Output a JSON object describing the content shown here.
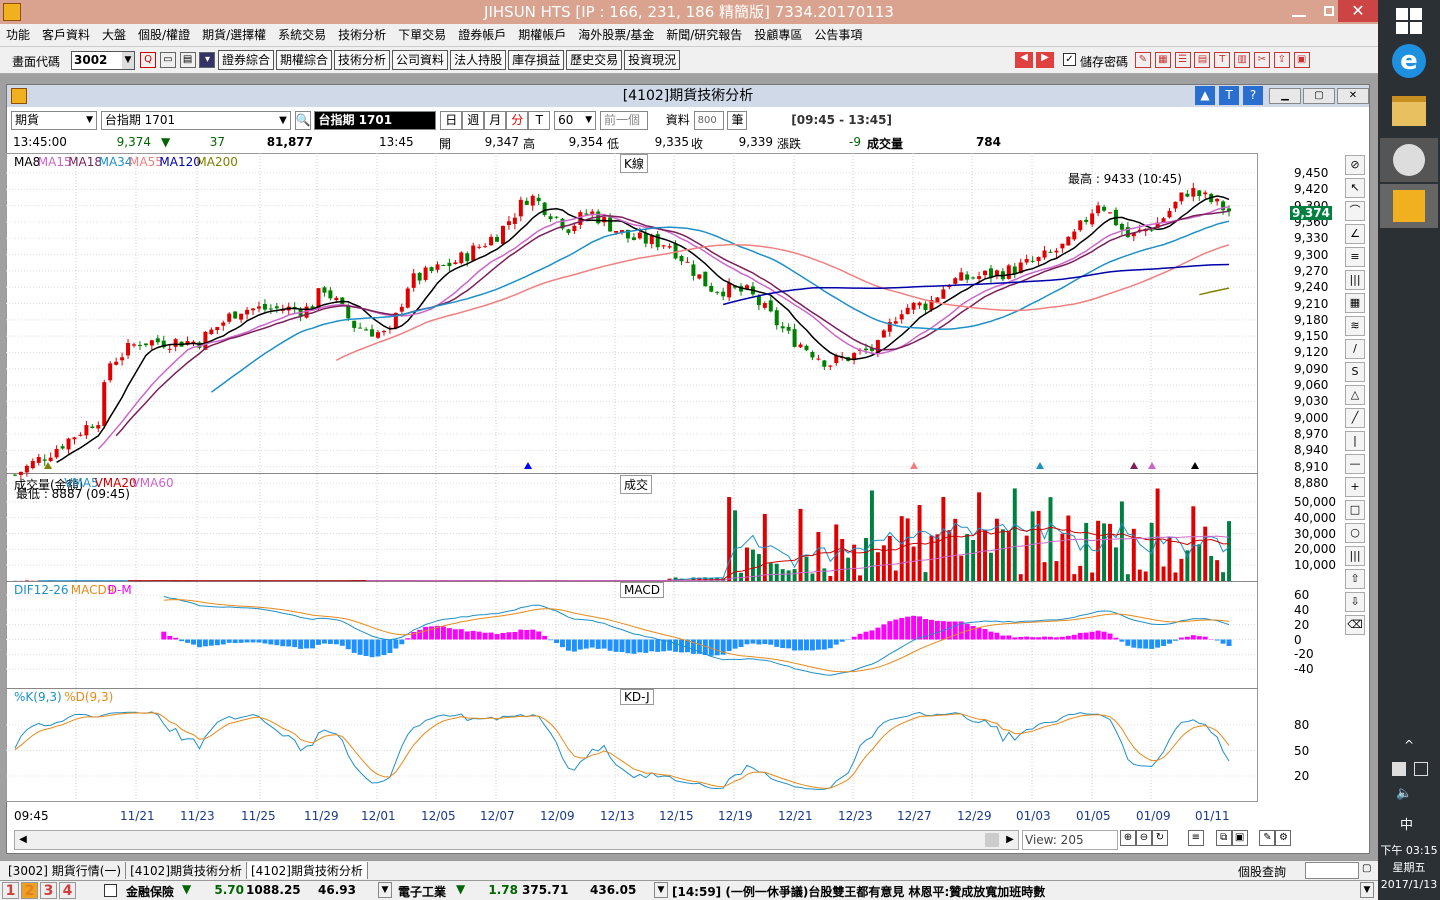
{
  "window_title": "JIHSUN HTS    [IP : 166, 231, 186 精簡版] 7334.20170113",
  "menu": [
    "功能",
    "客戶資料",
    "大盤",
    "個股/權證",
    "期貨/選擇權",
    "系統交易",
    "技術分析",
    "下單交易",
    "證券帳戶",
    "期權帳戶",
    "海外股票/基金",
    "新聞/研究報告",
    "投顧專區",
    "公告事項"
  ],
  "toolbar": {
    "code_label": "畫面代碼",
    "code_value": "3002",
    "buttons": [
      "證券綜合",
      "期權綜合",
      "技術分析",
      "公司資料",
      "法人持股",
      "庫存損益",
      "歷史交易",
      "投資現況"
    ],
    "save_password": "儲存密碼"
  },
  "inner": {
    "title": "[4102]期貨技術分析",
    "type_select": "期貨",
    "symbol": "台指期 1701",
    "symbol_name": "台指期 1701",
    "periods": [
      "日",
      "週",
      "月",
      "分",
      "T"
    ],
    "minutes": "60",
    "prev_btn": "前一個",
    "data_label": "資料",
    "data_count": "800",
    "data_unit": "筆",
    "session": "[09:45 - 13:45]"
  },
  "quote": {
    "time": "13:45:00",
    "price": "9,374",
    "change": "37",
    "volume": "81,877",
    "time2": "13:45",
    "open_label": "開",
    "open": "9,347",
    "high_label": "高",
    "high": "9,354",
    "low_label": "低",
    "low": "9,335",
    "close_label": "收",
    "close": "9,339",
    "chg_label": "漲跌",
    "chg": "-9",
    "vol_label": "成交量",
    "vol": "784"
  },
  "panels": {
    "k": {
      "title": "K線",
      "legend": [
        {
          "t": "MA8",
          "c": "#000000"
        },
        {
          "t": "MA15",
          "c": "#cc66cc"
        },
        {
          "t": "MA18",
          "c": "#7b1f5a"
        },
        {
          "t": "MA34",
          "c": "#1e90c8"
        },
        {
          "t": "MA55",
          "c": "#f08080"
        },
        {
          "t": "MA120",
          "c": "#0000aa"
        },
        {
          "t": "MA200",
          "c": "#808000"
        }
      ],
      "high_note": "最高 : 9433 (10:45)",
      "low_note": "最低 : 8887 (09:45)",
      "ticks": [
        "9,450",
        "9,420",
        "9,390",
        "9,360",
        "9,330",
        "9,300",
        "9,270",
        "9,240",
        "9,210",
        "9,180",
        "9,150",
        "9,120",
        "9,090",
        "9,060",
        "9,030",
        "9,000",
        "8,970",
        "8,940",
        "8,910",
        "8,880"
      ],
      "last": "9,374"
    },
    "vol": {
      "title": "成交",
      "legend": [
        {
          "t": "成交量(金額)",
          "c": "#000000"
        },
        {
          "t": "VMA5",
          "c": "#1e90c8"
        },
        {
          "t": "VMA20",
          "c": "#cc0000"
        },
        {
          "t": "VMA60",
          "c": "#cc66cc"
        }
      ],
      "ticks": [
        "50,000",
        "40,000",
        "30,000",
        "20,000",
        "10,000"
      ]
    },
    "macd": {
      "title": "MACD",
      "legend": [
        {
          "t": "DIF12-26",
          "c": "#1e90c8"
        },
        {
          "t": "MACD9",
          "c": "#e88a1a"
        },
        {
          "t": "D-M",
          "c": "#ff00ff"
        }
      ],
      "ticks": [
        "60",
        "40",
        "20",
        "0",
        "-20",
        "-40"
      ]
    },
    "kd": {
      "title": "KD-J",
      "legend": [
        {
          "t": "%K(9,3)",
          "c": "#1e90c8"
        },
        {
          "t": "%D(9,3)",
          "c": "#e88a1a"
        }
      ],
      "ticks": [
        "80",
        "50",
        "20"
      ]
    }
  },
  "xaxis": [
    "09:45",
    "11/21",
    "11/23",
    "11/25",
    "11/29",
    "12/01",
    "12/05",
    "12/07",
    "12/09",
    "12/13",
    "12/15",
    "12/19",
    "12/21",
    "12/23",
    "12/27",
    "12/29",
    "01/03",
    "01/05",
    "01/09",
    "01/11"
  ],
  "view": "View: 205",
  "tabs": [
    "[3002] 期貨行情(一)",
    "[4102]期貨技術分析",
    "[4102]期貨技術分析"
  ],
  "stock_query": "個股查詢",
  "status": {
    "nums": [
      "1",
      "2",
      "3",
      "4"
    ],
    "s1_name": "金融保險",
    "s1_chg": "5.70",
    "s1_idx": "1088.25",
    "s1_v": "46.93",
    "s2_name": "電子工業",
    "s2_chg": "1.78",
    "s2_idx": "375.71",
    "s2_v": "436.05",
    "news": "[14:59]  (一例一休爭議)台股雙王都有意見 林恩平:贊成放寬加班時數"
  },
  "clock": {
    "ime": "中",
    "time": "下午 03:15",
    "weekday": "星期五",
    "date": "2017/1/13"
  },
  "chart_data": {
    "type": "candlestick",
    "title": "K線",
    "series": [
      {
        "name": "MA8"
      },
      {
        "name": "MA15"
      },
      {
        "name": "MA18"
      },
      {
        "name": "MA34"
      },
      {
        "name": "MA55"
      },
      {
        "name": "MA120"
      },
      {
        "name": "MA200"
      }
    ],
    "ylim": [
      8880,
      9450
    ],
    "high": 9433,
    "low": 8887,
    "last": 9374
  }
}
